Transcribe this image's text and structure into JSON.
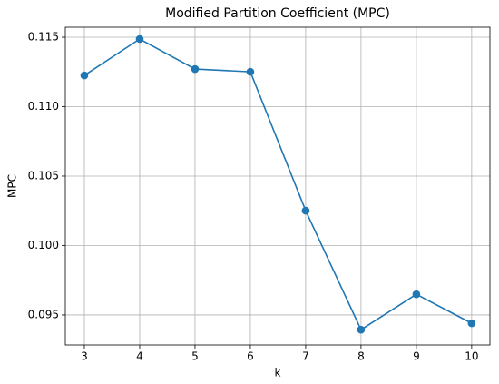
{
  "chart_data": {
    "type": "line",
    "title": "Modified Partition Coefficient (MPC)",
    "x_label": "k",
    "y_label": "MPC",
    "x": [
      3,
      4,
      5,
      6,
      7,
      8,
      9,
      10
    ],
    "series": [
      {
        "name": "MPC",
        "color": "#1f77b4",
        "values": [
          0.11225,
          0.11487,
          0.11271,
          0.11251,
          0.10251,
          0.09394,
          0.09649,
          0.0944
        ]
      }
    ],
    "xlim": [
      2.656,
      10.33
    ],
    "ylim": [
      0.09284,
      0.11572
    ],
    "xticks": [
      3,
      4,
      5,
      6,
      7,
      8,
      9,
      10
    ],
    "yticks": [
      0.095,
      {
        "value": 0.1,
        "label": "0.100"
      },
      0.105,
      {
        "value": 0.11,
        "label": "0.110"
      },
      0.115
    ],
    "grid": true,
    "legend": false
  }
}
